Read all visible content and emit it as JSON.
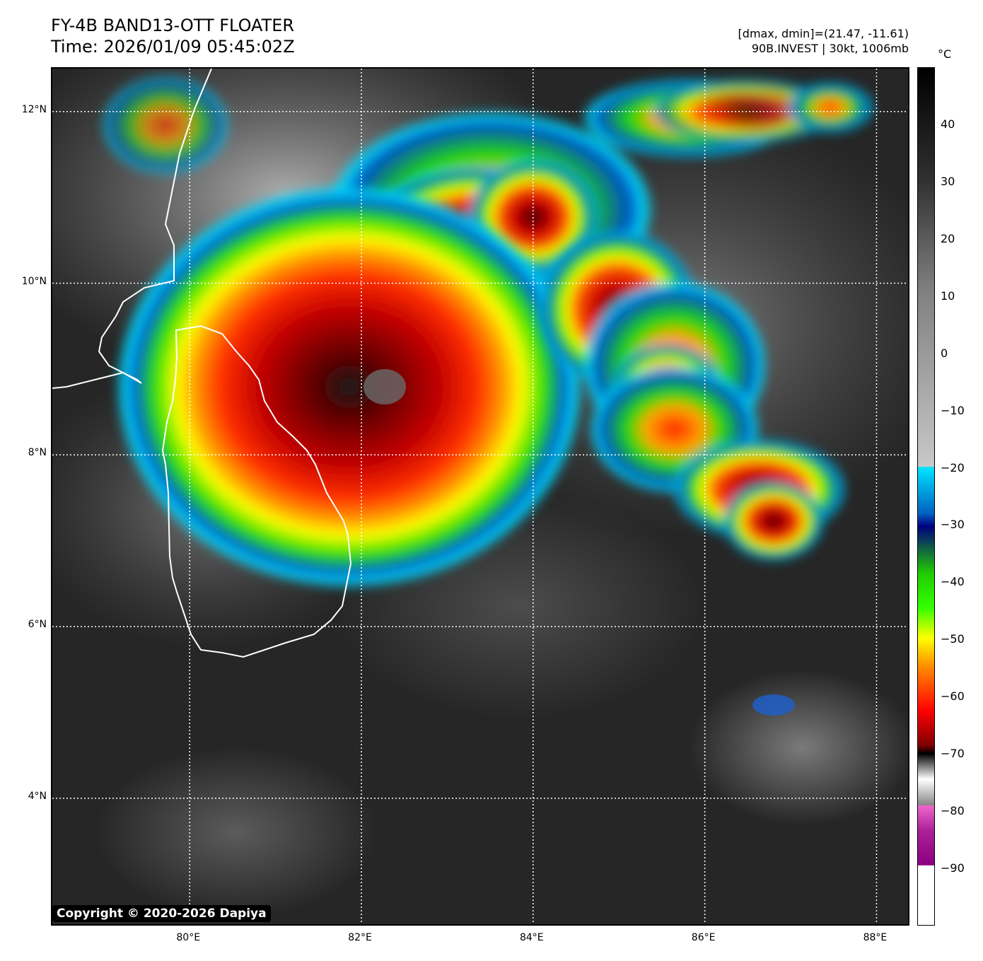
{
  "header": {
    "title_line1": "FY-4B BAND13-OTT FLOATER",
    "title_line2": "Time: 2026/01/09 05:45:02Z",
    "range_text": "[dmax, dmin]=(21.47, -11.61)",
    "storm_text": "90B.INVEST | 30kt, 1006mb"
  },
  "map": {
    "lat_labels": [
      "12°N",
      "10°N",
      "8°N",
      "6°N",
      "4°N"
    ],
    "lon_labels": [
      "80°E",
      "82°E",
      "84°E",
      "86°E",
      "88°E"
    ],
    "lat_values": [
      12,
      10,
      8,
      6,
      4
    ],
    "lon_values": [
      80,
      82,
      84,
      86,
      88
    ],
    "extent": {
      "lon_min": 78.4,
      "lon_max": 88.4,
      "lat_min": 2.5,
      "lat_max": 12.5
    }
  },
  "colorbar": {
    "unit": "°C",
    "ticks": [
      "40",
      "30",
      "20",
      "10",
      "0",
      "−10",
      "−20",
      "−30",
      "−40",
      "−50",
      "−60",
      "−70",
      "−80",
      "−90"
    ],
    "tick_values": [
      40,
      30,
      20,
      10,
      0,
      -10,
      -20,
      -30,
      -40,
      -50,
      -60,
      -70,
      -80,
      -90
    ],
    "range": [
      -100,
      50
    ]
  },
  "copyright": "Copyright © 2020-2026 Dapiya"
}
